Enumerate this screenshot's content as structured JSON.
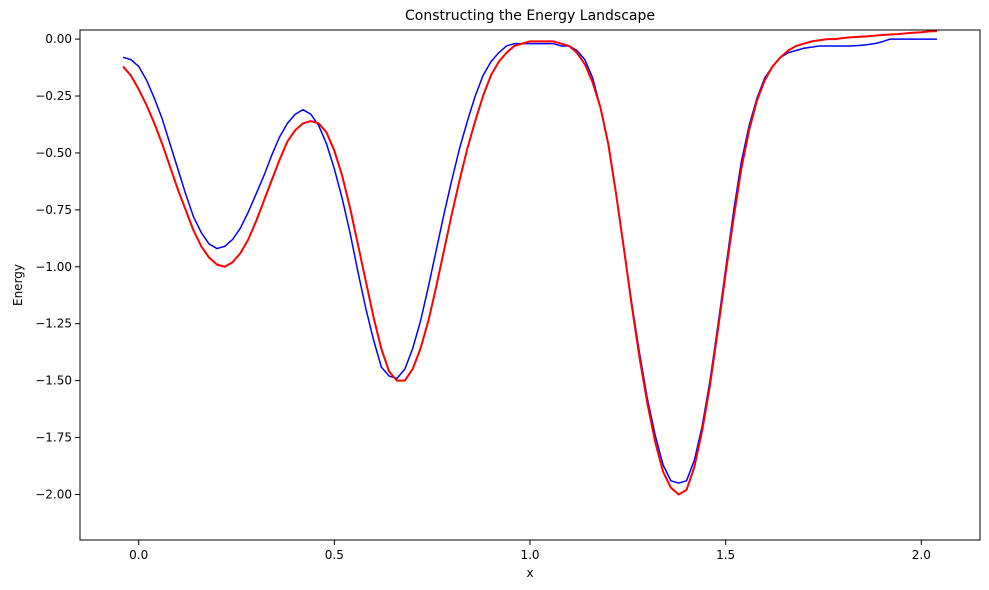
{
  "chart_data": {
    "type": "line",
    "title": "Constructing the Energy Landscape",
    "xlabel": "x",
    "ylabel": "Energy",
    "xlim": [
      -0.15,
      2.15
    ],
    "ylim": [
      -2.2,
      0.04
    ],
    "grid": false,
    "legend": null,
    "xticks": [
      0.0,
      0.5,
      1.0,
      1.5,
      2.0
    ],
    "xtick_labels": [
      "0.0",
      "0.5",
      "1.0",
      "1.5",
      "2.0"
    ],
    "yticks": [
      0.0,
      -0.25,
      -0.5,
      -0.75,
      -1.0,
      -1.25,
      -1.5,
      -1.75,
      -2.0
    ],
    "ytick_labels": [
      "0.00",
      "−0.25",
      "−0.50",
      "−0.75",
      "−1.00",
      "−1.25",
      "−1.50",
      "−1.75",
      "−2.00"
    ],
    "series": [
      {
        "color": "#0000ff",
        "line_width": 1.5,
        "x": [
          -0.04,
          -0.02,
          0.0,
          0.02,
          0.04,
          0.06,
          0.08,
          0.1,
          0.12,
          0.14,
          0.16,
          0.18,
          0.2,
          0.22,
          0.24,
          0.26,
          0.28,
          0.3,
          0.32,
          0.34,
          0.36,
          0.38,
          0.4,
          0.42,
          0.44,
          0.46,
          0.48,
          0.5,
          0.52,
          0.54,
          0.56,
          0.58,
          0.6,
          0.62,
          0.64,
          0.66,
          0.68,
          0.7,
          0.72,
          0.74,
          0.76,
          0.78,
          0.8,
          0.82,
          0.84,
          0.86,
          0.88,
          0.9,
          0.92,
          0.94,
          0.96,
          0.98,
          1.0,
          1.02,
          1.04,
          1.06,
          1.08,
          1.1,
          1.12,
          1.14,
          1.16,
          1.18,
          1.2,
          1.22,
          1.24,
          1.26,
          1.28,
          1.3,
          1.32,
          1.34,
          1.36,
          1.38,
          1.4,
          1.42,
          1.44,
          1.46,
          1.48,
          1.5,
          1.52,
          1.54,
          1.56,
          1.58,
          1.6,
          1.62,
          1.64,
          1.66,
          1.68,
          1.7,
          1.72,
          1.74,
          1.76,
          1.78,
          1.8,
          1.82,
          1.84,
          1.86,
          1.88,
          1.9,
          1.92,
          1.94,
          1.96,
          1.98,
          2.0,
          2.02,
          2.04
        ],
        "y": [
          -0.08,
          -0.09,
          -0.12,
          -0.18,
          -0.26,
          -0.35,
          -0.46,
          -0.57,
          -0.68,
          -0.78,
          -0.85,
          -0.9,
          -0.92,
          -0.91,
          -0.88,
          -0.83,
          -0.76,
          -0.68,
          -0.6,
          -0.51,
          -0.43,
          -0.37,
          -0.33,
          -0.31,
          -0.33,
          -0.38,
          -0.46,
          -0.57,
          -0.7,
          -0.85,
          -1.02,
          -1.18,
          -1.32,
          -1.44,
          -1.48,
          -1.49,
          -1.45,
          -1.36,
          -1.24,
          -1.09,
          -0.93,
          -0.77,
          -0.62,
          -0.48,
          -0.36,
          -0.25,
          -0.16,
          -0.1,
          -0.06,
          -0.03,
          -0.02,
          -0.02,
          -0.02,
          -0.02,
          -0.02,
          -0.02,
          -0.03,
          -0.03,
          -0.05,
          -0.09,
          -0.17,
          -0.3,
          -0.46,
          -0.68,
          -0.92,
          -1.16,
          -1.38,
          -1.58,
          -1.74,
          -1.87,
          -1.94,
          -1.95,
          -1.94,
          -1.85,
          -1.7,
          -1.5,
          -1.26,
          -1.01,
          -0.76,
          -0.54,
          -0.38,
          -0.26,
          -0.17,
          -0.12,
          -0.08,
          -0.06,
          -0.05,
          -0.04,
          -0.035,
          -0.03,
          -0.03,
          -0.03,
          -0.03,
          -0.03,
          -0.028,
          -0.025,
          -0.02,
          -0.012,
          0.0,
          0.0,
          0.0,
          0.0,
          0.0,
          0.0,
          0.0
        ]
      },
      {
        "color": "#ff0000",
        "line_width": 2,
        "x": [
          -0.04,
          -0.02,
          0.0,
          0.02,
          0.04,
          0.06,
          0.08,
          0.1,
          0.12,
          0.14,
          0.16,
          0.18,
          0.2,
          0.22,
          0.24,
          0.26,
          0.28,
          0.3,
          0.32,
          0.34,
          0.36,
          0.38,
          0.4,
          0.42,
          0.44,
          0.46,
          0.48,
          0.5,
          0.52,
          0.54,
          0.56,
          0.58,
          0.6,
          0.62,
          0.64,
          0.66,
          0.68,
          0.7,
          0.72,
          0.74,
          0.76,
          0.78,
          0.8,
          0.82,
          0.84,
          0.86,
          0.88,
          0.9,
          0.92,
          0.94,
          0.96,
          0.98,
          1.0,
          1.02,
          1.04,
          1.06,
          1.08,
          1.1,
          1.12,
          1.14,
          1.16,
          1.18,
          1.2,
          1.22,
          1.24,
          1.26,
          1.28,
          1.3,
          1.32,
          1.34,
          1.36,
          1.38,
          1.4,
          1.42,
          1.44,
          1.46,
          1.48,
          1.5,
          1.52,
          1.54,
          1.56,
          1.58,
          1.6,
          1.62,
          1.64,
          1.66,
          1.68,
          1.7,
          1.72,
          1.74,
          1.76,
          1.78,
          1.8,
          1.82,
          1.84,
          1.86,
          1.88,
          1.9,
          1.92,
          1.94,
          1.96,
          1.98,
          2.0,
          2.02,
          2.04
        ],
        "y": [
          -0.12,
          -0.16,
          -0.22,
          -0.29,
          -0.37,
          -0.46,
          -0.56,
          -0.66,
          -0.75,
          -0.84,
          -0.91,
          -0.96,
          -0.99,
          -1.0,
          -0.98,
          -0.94,
          -0.88,
          -0.8,
          -0.71,
          -0.62,
          -0.53,
          -0.45,
          -0.4,
          -0.37,
          -0.36,
          -0.37,
          -0.41,
          -0.49,
          -0.6,
          -0.74,
          -0.9,
          -1.06,
          -1.22,
          -1.36,
          -1.46,
          -1.5,
          -1.5,
          -1.45,
          -1.36,
          -1.24,
          -1.09,
          -0.93,
          -0.77,
          -0.62,
          -0.48,
          -0.36,
          -0.25,
          -0.16,
          -0.1,
          -0.06,
          -0.03,
          -0.02,
          -0.01,
          -0.01,
          -0.01,
          -0.01,
          -0.02,
          -0.03,
          -0.06,
          -0.11,
          -0.19,
          -0.3,
          -0.46,
          -0.68,
          -0.92,
          -1.17,
          -1.4,
          -1.6,
          -1.77,
          -1.9,
          -1.97,
          -2.0,
          -1.98,
          -1.88,
          -1.72,
          -1.52,
          -1.28,
          -1.03,
          -0.79,
          -0.57,
          -0.4,
          -0.27,
          -0.18,
          -0.12,
          -0.08,
          -0.05,
          -0.03,
          -0.02,
          -0.01,
          -0.005,
          0.0,
          0.0,
          0.005,
          0.008,
          0.01,
          0.012,
          0.015,
          0.018,
          0.02,
          0.022,
          0.025,
          0.028,
          0.03,
          0.034,
          0.035
        ]
      }
    ]
  }
}
